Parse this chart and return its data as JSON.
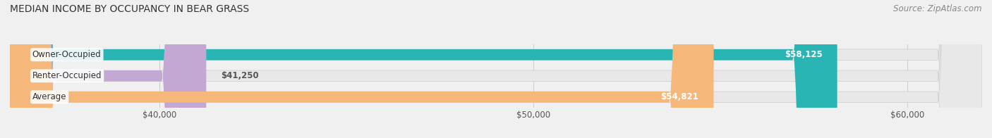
{
  "title": "MEDIAN INCOME BY OCCUPANCY IN BEAR GRASS",
  "source": "Source: ZipAtlas.com",
  "categories": [
    "Owner-Occupied",
    "Renter-Occupied",
    "Average"
  ],
  "values": [
    58125,
    41250,
    54821
  ],
  "labels": [
    "$58,125",
    "$41,250",
    "$54,821"
  ],
  "bar_colors": [
    "#2ab5b5",
    "#c4a8d4",
    "#f5b87a"
  ],
  "bar_bg_color": "#e8e8e8",
  "xlim_min": 36000,
  "xlim_max": 62000,
  "xticks": [
    40000,
    50000,
    60000
  ],
  "xtick_labels": [
    "$40,000",
    "$50,000",
    "$60,000"
  ],
  "title_fontsize": 10,
  "source_fontsize": 8.5,
  "label_fontsize": 8.5,
  "category_fontsize": 8.5,
  "bar_height": 0.52,
  "figsize": [
    14.06,
    1.96
  ],
  "dpi": 100
}
